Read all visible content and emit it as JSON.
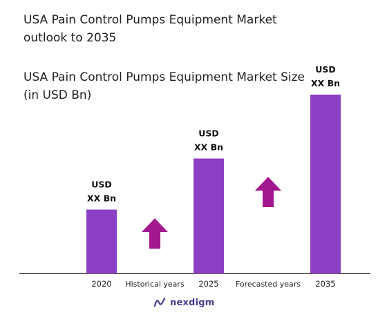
{
  "title": "USA Pain Control Pumps Equipment Market outlook to 2035",
  "brand": {
    "name": "nexdigm",
    "logo_icon": "nexdigm-logo-icon",
    "color": "#4a3d8f"
  },
  "colors": {
    "bar": "#8a3fc4",
    "arrow": "#a3178f",
    "axis": "#2b2b2b",
    "label_text": "#111111"
  },
  "chart_data": {
    "type": "bar",
    "title": "USA Pain Control Pumps Equipment Market Size (in USD Bn)",
    "categories": [
      "2020",
      "2025",
      "2035"
    ],
    "values": [
      1.0,
      1.8,
      2.8
    ],
    "value_labels": [
      [
        "USD",
        "XX Bn"
      ],
      [
        "USD",
        "XX Bn"
      ],
      [
        "USD",
        "XX Bn"
      ]
    ],
    "annotations": [
      {
        "text": "Historical years",
        "between": [
          "2020",
          "2025"
        ],
        "arrow": "up-arrow-icon"
      },
      {
        "text": "Forecasted years",
        "between": [
          "2025",
          "2035"
        ],
        "arrow": "up-arrow-icon"
      }
    ],
    "ylim": [
      0,
      2.8
    ],
    "grid": false,
    "legend": "none"
  }
}
